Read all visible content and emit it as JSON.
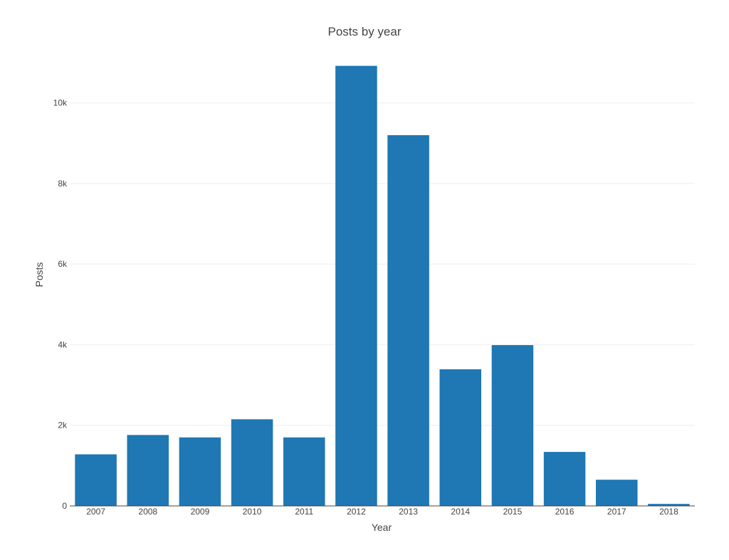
{
  "chart_data": {
    "type": "bar",
    "title": "Posts by year",
    "xlabel": "Year",
    "ylabel": "Posts",
    "categories": [
      "2007",
      "2008",
      "2009",
      "2010",
      "2011",
      "2012",
      "2013",
      "2014",
      "2015",
      "2016",
      "2017",
      "2018"
    ],
    "values": [
      1280,
      1760,
      1700,
      2150,
      1700,
      10920,
      9200,
      3390,
      3990,
      1340,
      650,
      50
    ],
    "ylim": [
      0,
      11000
    ],
    "yticks": [
      0,
      2000,
      4000,
      6000,
      8000,
      10000
    ],
    "ytick_labels": [
      "0",
      "2k",
      "4k",
      "6k",
      "8k",
      "10k"
    ],
    "grid": true,
    "bar_color": "#1f77b4"
  }
}
